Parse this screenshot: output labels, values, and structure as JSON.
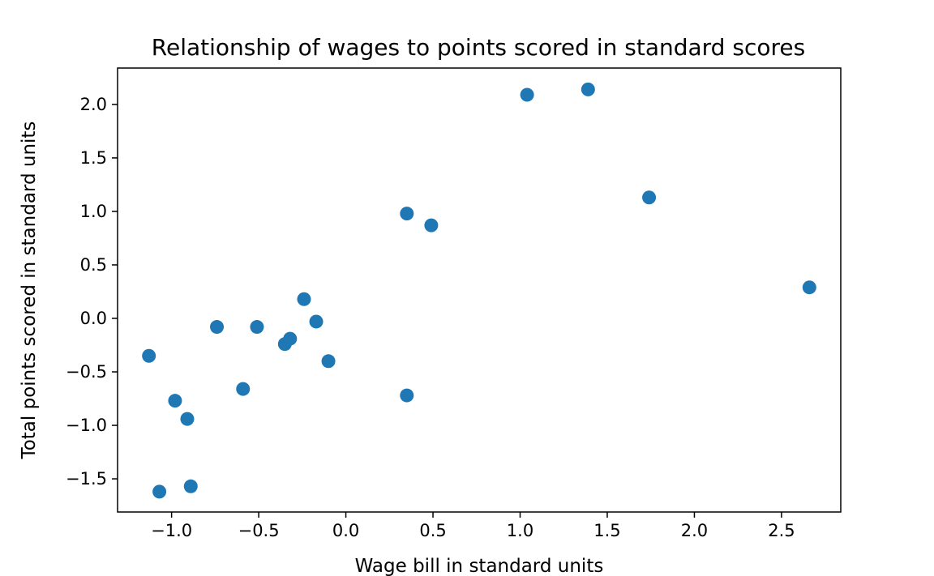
{
  "chart_data": {
    "type": "scatter",
    "title": "Relationship of wages to points scored in standard scores",
    "xlabel": "Wage bill in standard units",
    "ylabel": "Total points scored in standard units",
    "xlim": [
      -1.31,
      2.84
    ],
    "ylim": [
      -1.81,
      2.34
    ],
    "xticks": [
      -1.0,
      -0.5,
      0.0,
      0.5,
      1.0,
      1.5,
      2.0,
      2.5
    ],
    "xtick_labels": [
      "−1.0",
      "−0.5",
      "0.0",
      "0.5",
      "1.0",
      "1.5",
      "2.0",
      "2.5"
    ],
    "yticks": [
      -1.5,
      -1.0,
      -0.5,
      0.0,
      0.5,
      1.0,
      1.5,
      2.0
    ],
    "ytick_labels": [
      "−1.5",
      "−1.0",
      "−0.5",
      "0.0",
      "0.5",
      "1.0",
      "1.5",
      "2.0"
    ],
    "grid": false,
    "marker_color": "#1f77b4",
    "points": [
      {
        "x": 1.04,
        "y": 2.09
      },
      {
        "x": 1.39,
        "y": 2.14
      },
      {
        "x": 1.74,
        "y": 1.13
      },
      {
        "x": 0.35,
        "y": 0.98
      },
      {
        "x": 0.49,
        "y": 0.87
      },
      {
        "x": 2.66,
        "y": 0.29
      },
      {
        "x": -0.24,
        "y": 0.18
      },
      {
        "x": -0.17,
        "y": -0.03
      },
      {
        "x": -0.74,
        "y": -0.08
      },
      {
        "x": -0.51,
        "y": -0.08
      },
      {
        "x": -0.32,
        "y": -0.19
      },
      {
        "x": -0.35,
        "y": -0.24
      },
      {
        "x": -1.13,
        "y": -0.35
      },
      {
        "x": -0.1,
        "y": -0.4
      },
      {
        "x": -0.59,
        "y": -0.66
      },
      {
        "x": 0.35,
        "y": -0.72
      },
      {
        "x": -0.98,
        "y": -0.77
      },
      {
        "x": -0.91,
        "y": -0.94
      },
      {
        "x": -1.07,
        "y": -1.62
      },
      {
        "x": -0.89,
        "y": -1.57
      }
    ]
  }
}
